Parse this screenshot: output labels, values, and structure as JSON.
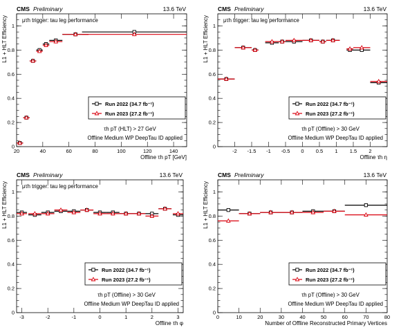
{
  "header": {
    "experiment": "CMS",
    "status": "Preliminary",
    "energy": "13.6 TeV"
  },
  "labels": {
    "ylabel": "L1 + HLT Efficiency",
    "trigger": "μτh trigger: tau leg performance",
    "tau_id": "Offline Medium WP DeepTau ID applied"
  },
  "legend": {
    "run2022": "Run 2022 (34.7 fb⁻¹)",
    "run2023": "Run 2023 (27.2 fb⁻¹)"
  },
  "colors": {
    "run2022": "#000000",
    "run2023": "#d9000d"
  },
  "chart_data": [
    {
      "type": "scatter",
      "xlabel": "Offline τh pT [GeV]",
      "cut": "τh pT (HLT) > 27 GeV",
      "show_trigger": true,
      "xlim": [
        20,
        150
      ],
      "ylim": [
        0,
        1.1
      ],
      "xticks": [
        20,
        40,
        60,
        80,
        100,
        120,
        140
      ],
      "yticks": [
        0,
        0.2,
        0.4,
        0.6,
        0.8,
        1
      ],
      "legend_position": "lower-right",
      "series": [
        {
          "name": "Run 2022 (34.7 fb⁻¹)",
          "x": [
            22.5,
            27.5,
            32.5,
            37.5,
            42.5,
            50,
            65,
            110
          ],
          "xerr": [
            2.5,
            2.5,
            2.5,
            2.5,
            2.5,
            5,
            10,
            40
          ],
          "y": [
            0.03,
            0.24,
            0.71,
            0.8,
            0.85,
            0.88,
            0.93,
            0.95
          ]
        },
        {
          "name": "Run 2023 (27.2 fb⁻¹)",
          "x": [
            22.5,
            27.5,
            32.5,
            37.5,
            42.5,
            50,
            65,
            110
          ],
          "xerr": [
            2.5,
            2.5,
            2.5,
            2.5,
            2.5,
            5,
            10,
            40
          ],
          "y": [
            0.03,
            0.24,
            0.71,
            0.79,
            0.84,
            0.87,
            0.93,
            0.93
          ]
        }
      ]
    },
    {
      "type": "scatter",
      "xlabel": "Offline τh η",
      "cut": "τh pT (Offline) > 30 GeV",
      "show_trigger": true,
      "xlim": [
        -2.5,
        2.5
      ],
      "ylim": [
        0,
        1.1
      ],
      "xticks": [
        -2,
        -1.5,
        -1,
        -0.5,
        0,
        0.5,
        1,
        1.5,
        2
      ],
      "yticks": [
        0,
        0.2,
        0.4,
        0.6,
        0.8,
        1
      ],
      "legend_position": "lower-right",
      "series": [
        {
          "name": "Run 2022 (34.7 fb⁻¹)",
          "x": [
            -2.25,
            -1.75,
            -1.4,
            -0.9,
            -0.6,
            -0.25,
            0.25,
            0.6,
            0.9,
            1.4,
            1.75,
            2.25
          ],
          "xerr": [
            0.25,
            0.25,
            0.1,
            0.2,
            0.1,
            0.25,
            0.25,
            0.1,
            0.2,
            0.1,
            0.25,
            0.25
          ],
          "y": [
            0.56,
            0.82,
            0.8,
            0.86,
            0.87,
            0.87,
            0.88,
            0.87,
            0.88,
            0.8,
            0.8,
            0.53
          ]
        },
        {
          "name": "Run 2023 (27.2 fb⁻¹)",
          "x": [
            -2.25,
            -1.75,
            -1.4,
            -0.9,
            -0.6,
            -0.25,
            0.25,
            0.6,
            0.9,
            1.4,
            1.75,
            2.25
          ],
          "xerr": [
            0.25,
            0.25,
            0.1,
            0.2,
            0.1,
            0.25,
            0.25,
            0.1,
            0.2,
            0.1,
            0.25,
            0.25
          ],
          "y": [
            0.56,
            0.82,
            0.8,
            0.87,
            0.87,
            0.88,
            0.88,
            0.87,
            0.88,
            0.81,
            0.82,
            0.54
          ]
        }
      ]
    },
    {
      "type": "scatter",
      "xlabel": "Offline τh φ",
      "cut": "τh pT (Offline) > 30 GeV",
      "show_trigger": true,
      "xlim": [
        -3.2,
        3.2
      ],
      "ylim": [
        0,
        1.1
      ],
      "xticks": [
        -3,
        -2,
        -1,
        0,
        1,
        2,
        3
      ],
      "yticks": [
        0,
        0.2,
        0.4,
        0.6,
        0.8,
        1
      ],
      "legend_position": "lower-right",
      "series": [
        {
          "name": "Run 2022 (34.7 fb⁻¹)",
          "x": [
            -3,
            -2.5,
            -2,
            -1.5,
            -1,
            -0.5,
            0,
            0.5,
            1,
            1.5,
            2,
            2.5,
            3
          ],
          "xerr": [
            0.2,
            0.25,
            0.25,
            0.25,
            0.25,
            0.25,
            0.25,
            0.25,
            0.25,
            0.25,
            0.25,
            0.25,
            0.2
          ],
          "y": [
            0.83,
            0.81,
            0.83,
            0.84,
            0.84,
            0.85,
            0.83,
            0.83,
            0.82,
            0.82,
            0.82,
            0.86,
            0.81
          ]
        },
        {
          "name": "Run 2023 (27.2 fb⁻¹)",
          "x": [
            -3,
            -2.5,
            -2,
            -1.5,
            -1,
            -0.5,
            0,
            0.5,
            1,
            1.5,
            2,
            2.5,
            3
          ],
          "xerr": [
            0.2,
            0.25,
            0.25,
            0.25,
            0.25,
            0.25,
            0.25,
            0.25,
            0.25,
            0.25,
            0.25,
            0.25,
            0.2
          ],
          "y": [
            0.82,
            0.82,
            0.82,
            0.85,
            0.83,
            0.85,
            0.82,
            0.82,
            0.82,
            0.82,
            0.8,
            0.86,
            0.82
          ]
        }
      ]
    },
    {
      "type": "scatter",
      "xlabel": "Number of Offline Reconstructed Primary Vertices",
      "cut": "τh pT (Offline) > 30 GeV",
      "show_trigger": false,
      "xlim": [
        0,
        80
      ],
      "ylim": [
        0,
        1.1
      ],
      "xticks": [
        0,
        10,
        20,
        30,
        40,
        50,
        60,
        70,
        80
      ],
      "yticks": [
        0,
        0.2,
        0.4,
        0.6,
        0.8,
        1
      ],
      "legend_position": "lower-right",
      "series": [
        {
          "name": "Run 2022 (34.7 fb⁻¹)",
          "x": [
            5,
            15,
            25,
            35,
            45,
            55,
            70
          ],
          "xerr": [
            5,
            5,
            5,
            5,
            5,
            5,
            10
          ],
          "y": [
            0.85,
            0.82,
            0.83,
            0.83,
            0.84,
            0.84,
            0.89
          ]
        },
        {
          "name": "Run 2023 (27.2 fb⁻¹)",
          "x": [
            5,
            15,
            25,
            35,
            45,
            55,
            70
          ],
          "xerr": [
            5,
            5,
            5,
            5,
            5,
            5,
            10
          ],
          "y": [
            0.76,
            0.82,
            0.83,
            0.83,
            0.83,
            0.84,
            0.81
          ]
        }
      ]
    }
  ]
}
